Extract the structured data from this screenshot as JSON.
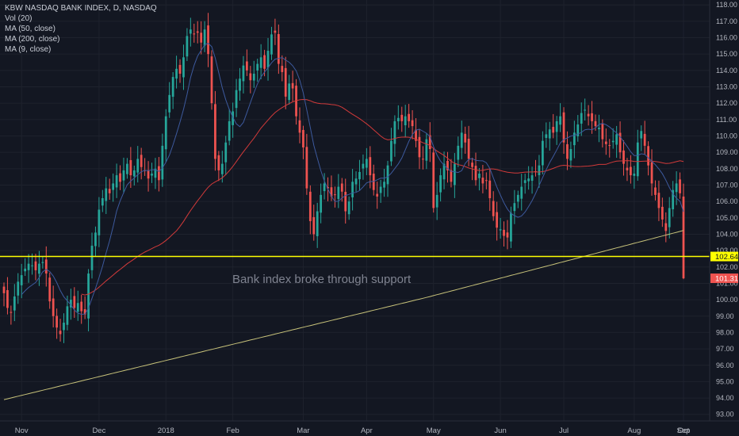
{
  "legend": {
    "title": "KBW NASDAQ BANK INDEX, D, NASDAQ",
    "indicators": [
      "Vol (20)",
      "MA (50, close)",
      "MA (200, close)",
      "MA (9, close)"
    ]
  },
  "annotation": "Bank index broke through support",
  "colors": {
    "background": "#131722",
    "up": "#26a69a",
    "down": "#ef5350",
    "ma9": "#3d5a9e",
    "ma50": "#d23a3a",
    "ma200": "#c7c27a",
    "support": "#ffff00",
    "last_price_badge": "#ef5350",
    "support_badge": "#ffff00",
    "axis_text": "#b2b5be"
  },
  "chart_data": {
    "type": "candlestick",
    "y_axis_ticks": [
      "93.00",
      "94.00",
      "95.00",
      "96.00",
      "97.00",
      "98.00",
      "99.00",
      "100.00",
      "101.00",
      "102.00",
      "103.00",
      "104.00",
      "105.00",
      "106.00",
      "107.00",
      "108.00",
      "109.00",
      "110.00",
      "111.00",
      "112.00",
      "113.00",
      "114.00",
      "115.00",
      "116.00",
      "117.00",
      "118.00"
    ],
    "ylim": [
      92.6,
      118.3
    ],
    "x_axis_labels": [
      "Nov",
      "Dec",
      "2018",
      "Feb",
      "Mar",
      "Apr",
      "May",
      "Jun",
      "Jul",
      "Aug",
      "Sep",
      "Oct"
    ],
    "support_level": 102.64,
    "support_label": "102.64",
    "last_price": 101.31,
    "last_price_label": "101.31",
    "closes": [
      100.4,
      99.5,
      99.2,
      100.2,
      101.1,
      101.5,
      101.9,
      102.2,
      102.1,
      101.8,
      102.2,
      102.3,
      101.6,
      99.9,
      99.0,
      98.3,
      97.9,
      98.6,
      99.6,
      100.0,
      99.5,
      99.8,
      99.3,
      99.1,
      101.6,
      103.3,
      104.1,
      105.5,
      106.2,
      106.8,
      106.5,
      107.1,
      107.6,
      107.2,
      107.9,
      108.3,
      107.6,
      107.9,
      108.6,
      108.1,
      107.9,
      107.4,
      107.7,
      108.0,
      107.3,
      109.4,
      111.2,
      112.5,
      113.6,
      114.1,
      113.8,
      114.8,
      116.1,
      116.5,
      116.2,
      116.3,
      115.7,
      116.5,
      115.0,
      112.0,
      108.6,
      107.9,
      108.3,
      109.6,
      110.9,
      111.5,
      112.8,
      113.5,
      114.3,
      114.0,
      113.4,
      113.8,
      114.4,
      114.8,
      114.1,
      115.2,
      116.2,
      116.3,
      114.4,
      113.9,
      112.4,
      113.2,
      112.9,
      111.2,
      110.2,
      109.3,
      106.8,
      104.8,
      104.0,
      105.4,
      106.4,
      107.1,
      106.8,
      106.3,
      106.4,
      106.9,
      106.6,
      105.4,
      106.0,
      107.2,
      107.4,
      107.8,
      108.3,
      108.6,
      107.6,
      106.7,
      106.3,
      106.9,
      107.2,
      108.2,
      109.7,
      110.9,
      111.1,
      110.9,
      111.2,
      110.9,
      110.6,
      109.7,
      108.7,
      108.6,
      109.8,
      109.2,
      105.6,
      106.4,
      107.6,
      108.3,
      107.9,
      107.2,
      108.3,
      109.4,
      110.2,
      109.6,
      108.6,
      108.1,
      107.3,
      107.7,
      107.1,
      107.3,
      106.2,
      105.1,
      104.4,
      104.3,
      103.9,
      103.8,
      105.3,
      105.9,
      106.4,
      106.9,
      107.3,
      107.4,
      107.6,
      107.8,
      108.2,
      109.7,
      110.1,
      110.4,
      110.2,
      110.9,
      111.2,
      109.6,
      108.6,
      109.2,
      110.2,
      110.7,
      111.4,
      111.6,
      111.2,
      110.9,
      110.6,
      110.5,
      109.8,
      109.5,
      109.4,
      109.7,
      110.1,
      109.0,
      108.3,
      107.9,
      107.6,
      107.7,
      109.6,
      110.3,
      109.4,
      108.2,
      107.1,
      106.4,
      105.6,
      104.9,
      104.2,
      105.6,
      106.7,
      107.1,
      106.5,
      101.31
    ]
  }
}
